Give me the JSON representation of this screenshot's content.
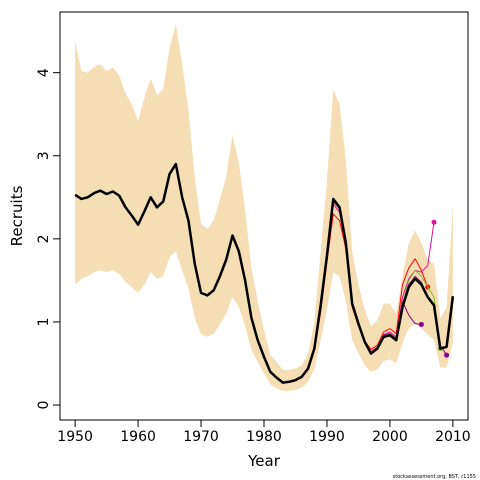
{
  "chart_data": {
    "type": "line",
    "x_label": "Year",
    "y_label": "Recruits",
    "footnote": "stockassessment.org, BST, r1155",
    "xlim": [
      1947.6,
      2012.4
    ],
    "ylim": [
      -0.18,
      4.73
    ],
    "xticks": [
      1950,
      1960,
      1970,
      1980,
      1990,
      2000,
      2010
    ],
    "yticks": [
      0,
      1,
      2,
      3,
      4
    ],
    "x": [
      1950,
      1951,
      1952,
      1953,
      1954,
      1955,
      1956,
      1957,
      1958,
      1959,
      1960,
      1961,
      1962,
      1963,
      1964,
      1965,
      1966,
      1967,
      1968,
      1969,
      1970,
      1971,
      1972,
      1973,
      1974,
      1975,
      1976,
      1977,
      1978,
      1979,
      1980,
      1981,
      1982,
      1983,
      1984,
      1985,
      1986,
      1987,
      1988,
      1989,
      1990,
      1991,
      1992,
      1993,
      1994,
      1995,
      1996,
      1997,
      1998,
      1999,
      2000,
      2001,
      2002,
      2003,
      2004,
      2005,
      2006,
      2007,
      2008,
      2009,
      2010
    ],
    "band": {
      "color": "#f5deb3",
      "upper": [
        4.38,
        4.02,
        4.0,
        4.07,
        4.1,
        4.02,
        4.06,
        3.97,
        3.75,
        3.62,
        3.42,
        3.7,
        3.93,
        3.73,
        3.8,
        4.3,
        4.58,
        4.1,
        3.55,
        2.75,
        2.18,
        2.12,
        2.22,
        2.48,
        2.75,
        3.25,
        2.92,
        2.35,
        1.65,
        1.25,
        0.9,
        0.6,
        0.52,
        0.42,
        0.42,
        0.44,
        0.48,
        0.62,
        1.0,
        1.85,
        2.7,
        3.8,
        3.62,
        2.95,
        1.85,
        1.45,
        1.15,
        0.95,
        1.02,
        1.22,
        1.22,
        1.1,
        1.55,
        1.95,
        2.1,
        1.95,
        1.75,
        1.7,
        1.05,
        1.18,
        2.4
      ],
      "lower": [
        1.45,
        1.52,
        1.55,
        1.6,
        1.62,
        1.6,
        1.62,
        1.58,
        1.48,
        1.42,
        1.35,
        1.45,
        1.6,
        1.52,
        1.55,
        1.78,
        1.85,
        1.62,
        1.4,
        1.05,
        0.85,
        0.82,
        0.86,
        0.97,
        1.1,
        1.3,
        1.18,
        0.95,
        0.66,
        0.52,
        0.38,
        0.25,
        0.2,
        0.17,
        0.17,
        0.18,
        0.21,
        0.28,
        0.43,
        0.78,
        1.15,
        1.6,
        1.55,
        1.25,
        0.78,
        0.62,
        0.48,
        0.4,
        0.43,
        0.53,
        0.55,
        0.5,
        0.75,
        0.92,
        0.98,
        0.92,
        0.85,
        0.78,
        0.45,
        0.45,
        0.75
      ]
    },
    "retro_series": [
      {
        "color": "#e0109a",
        "end_marker": true,
        "x": [
          1988,
          1989,
          1990,
          1991,
          1992,
          1993,
          1994,
          1995,
          1996,
          1997,
          1998,
          1999,
          2000,
          2001,
          2002,
          2003,
          2004,
          2005,
          2006,
          2007
        ],
        "values": [
          0.66,
          1.15,
          1.78,
          2.42,
          2.32,
          1.92,
          1.2,
          0.96,
          0.76,
          0.64,
          0.7,
          0.85,
          0.88,
          0.82,
          1.3,
          1.52,
          1.62,
          1.6,
          1.68,
          2.2
        ]
      },
      {
        "color": "#ff0000",
        "end_marker": true,
        "x": [
          1988,
          1989,
          1990,
          1991,
          1992,
          1993,
          1994,
          1995,
          1996,
          1997,
          1998,
          1999,
          2000,
          2001,
          2002,
          2003,
          2004,
          2005,
          2006
        ],
        "values": [
          0.66,
          1.12,
          1.72,
          2.3,
          2.22,
          1.88,
          1.18,
          0.95,
          0.77,
          0.67,
          0.72,
          0.88,
          0.92,
          0.86,
          1.45,
          1.65,
          1.76,
          1.62,
          1.42
        ]
      },
      {
        "color": "#8b008b",
        "end_marker": true,
        "x": [
          1988,
          1989,
          1990,
          1991,
          1992,
          1993,
          1994,
          1995,
          1996,
          1997,
          1998,
          1999,
          2000,
          2001,
          2002,
          2003,
          2004,
          2005
        ],
        "values": [
          0.67,
          1.18,
          1.8,
          2.45,
          2.36,
          1.94,
          1.22,
          0.97,
          0.76,
          0.63,
          0.69,
          0.84,
          0.86,
          0.8,
          1.25,
          1.08,
          0.98,
          0.97
        ]
      },
      {
        "color": "#7cba2a",
        "end_marker": true,
        "x": [
          1988,
          1989,
          1990,
          1991,
          1992,
          1993,
          1994,
          1995,
          1996,
          1997,
          1998,
          1999,
          2000,
          2001,
          2002,
          2003,
          2004,
          2005,
          2006,
          2007,
          2008
        ],
        "values": [
          0.68,
          1.19,
          1.8,
          2.46,
          2.37,
          1.95,
          1.22,
          0.98,
          0.76,
          0.62,
          0.68,
          0.83,
          0.85,
          0.79,
          1.22,
          1.5,
          1.62,
          1.55,
          1.42,
          1.3,
          0.68
        ]
      },
      {
        "color": "#8b008b",
        "end_marker": true,
        "x": [
          1988,
          1989,
          1990,
          1991,
          1992,
          1993,
          1994,
          1995,
          1996,
          1997,
          1998,
          1999,
          2000,
          2001,
          2002,
          2003,
          2004,
          2005,
          2006,
          2007,
          2008,
          2009
        ],
        "values": [
          0.68,
          1.2,
          1.8,
          2.47,
          2.38,
          1.95,
          1.22,
          0.98,
          0.76,
          0.61,
          0.68,
          0.82,
          0.84,
          0.78,
          1.2,
          1.45,
          1.55,
          1.48,
          1.3,
          1.22,
          0.72,
          0.6
        ]
      }
    ],
    "series": [
      {
        "color": "#000000",
        "values": [
          2.53,
          2.48,
          2.5,
          2.55,
          2.58,
          2.54,
          2.57,
          2.52,
          2.38,
          2.28,
          2.17,
          2.33,
          2.5,
          2.38,
          2.45,
          2.78,
          2.9,
          2.5,
          2.22,
          1.7,
          1.35,
          1.32,
          1.38,
          1.55,
          1.75,
          2.04,
          1.85,
          1.5,
          1.05,
          0.78,
          0.58,
          0.4,
          0.33,
          0.27,
          0.28,
          0.3,
          0.34,
          0.44,
          0.68,
          1.2,
          1.8,
          2.48,
          2.38,
          1.95,
          1.22,
          0.98,
          0.76,
          0.62,
          0.68,
          0.82,
          0.84,
          0.78,
          1.18,
          1.42,
          1.52,
          1.45,
          1.3,
          1.2,
          0.68,
          0.7,
          1.31
        ]
      }
    ]
  }
}
